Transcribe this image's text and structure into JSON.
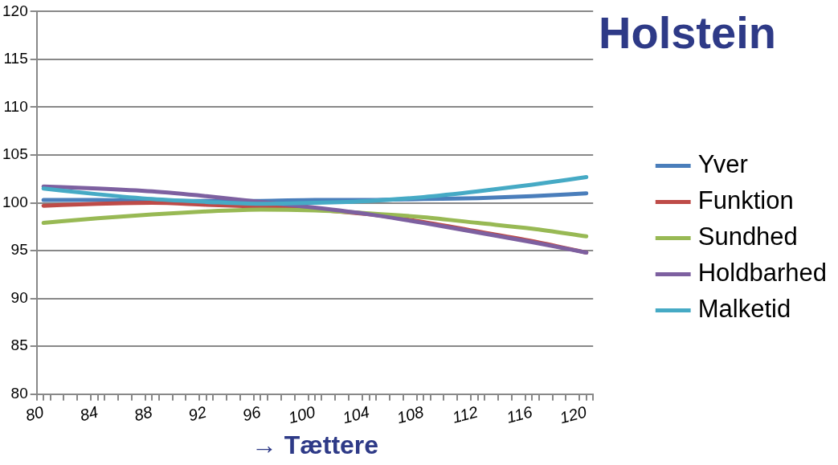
{
  "chart_data": {
    "type": "line",
    "title": "Holstein",
    "xlabel": "→ Tættere",
    "legend": "right",
    "grid": "y",
    "marker": "none",
    "line_style": "solid",
    "x": [
      80,
      84,
      88,
      92,
      96,
      100,
      104,
      108,
      112,
      116,
      120
    ],
    "xlim": [
      79.5,
      120.5
    ],
    "xticks": [
      {
        "value": 79.5,
        "label": null
      },
      {
        "value": 80,
        "label": "80"
      },
      {
        "value": 80.5,
        "label": null
      },
      {
        "value": 81.5,
        "label": null
      },
      {
        "value": 82.5,
        "label": null
      },
      {
        "value": 83.5,
        "label": null
      },
      {
        "value": 84,
        "label": "84"
      },
      {
        "value": 84.5,
        "label": null
      },
      {
        "value": 85.5,
        "label": null
      },
      {
        "value": 86.5,
        "label": null
      },
      {
        "value": 87.5,
        "label": null
      },
      {
        "value": 88,
        "label": "88"
      },
      {
        "value": 88.5,
        "label": null
      },
      {
        "value": 89.5,
        "label": null
      },
      {
        "value": 90.5,
        "label": null
      },
      {
        "value": 91.5,
        "label": null
      },
      {
        "value": 92,
        "label": "92"
      },
      {
        "value": 92.5,
        "label": null
      },
      {
        "value": 93.5,
        "label": null
      },
      {
        "value": 94.5,
        "label": null
      },
      {
        "value": 95.5,
        "label": null
      },
      {
        "value": 96,
        "label": "96"
      },
      {
        "value": 96.5,
        "label": null
      },
      {
        "value": 97.5,
        "label": null
      },
      {
        "value": 98.5,
        "label": null
      },
      {
        "value": 99.5,
        "label": null
      },
      {
        "value": 100,
        "label": "100"
      },
      {
        "value": 100.5,
        "label": null
      },
      {
        "value": 101.5,
        "label": null
      },
      {
        "value": 102.5,
        "label": null
      },
      {
        "value": 103.5,
        "label": null
      },
      {
        "value": 104,
        "label": "104"
      },
      {
        "value": 104.5,
        "label": null
      },
      {
        "value": 105.5,
        "label": null
      },
      {
        "value": 106.5,
        "label": null
      },
      {
        "value": 107.5,
        "label": null
      },
      {
        "value": 108,
        "label": "108"
      },
      {
        "value": 108.5,
        "label": null
      },
      {
        "value": 109.5,
        "label": null
      },
      {
        "value": 110.5,
        "label": null
      },
      {
        "value": 111.5,
        "label": null
      },
      {
        "value": 112,
        "label": "112"
      },
      {
        "value": 112.5,
        "label": null
      },
      {
        "value": 113.5,
        "label": null
      },
      {
        "value": 114.5,
        "label": null
      },
      {
        "value": 115.5,
        "label": null
      },
      {
        "value": 116,
        "label": "116"
      },
      {
        "value": 116.5,
        "label": null
      },
      {
        "value": 117.5,
        "label": null
      },
      {
        "value": 118.5,
        "label": null
      },
      {
        "value": 119.5,
        "label": null
      },
      {
        "value": 120,
        "label": "120"
      },
      {
        "value": 120.5,
        "label": null
      }
    ],
    "ylim": [
      80,
      120
    ],
    "yticks": [
      80,
      85,
      90,
      95,
      100,
      105,
      110,
      115,
      120
    ],
    "series": [
      {
        "name": "Yver",
        "color": "#4a7ebb",
        "values": [
          100.3,
          100.3,
          100.2,
          100.2,
          100.2,
          100.3,
          100.3,
          100.4,
          100.5,
          100.7,
          101.0
        ]
      },
      {
        "name": "Funktion",
        "color": "#be4b48",
        "values": [
          99.7,
          99.9,
          100.0,
          99.8,
          99.6,
          99.3,
          98.8,
          98.0,
          97.0,
          96.0,
          94.8
        ]
      },
      {
        "name": "Sundhed",
        "color": "#98b954",
        "values": [
          97.9,
          98.4,
          98.8,
          99.1,
          99.3,
          99.2,
          98.9,
          98.5,
          97.9,
          97.3,
          96.5
        ]
      },
      {
        "name": "Holdbarhed",
        "color": "#7d60a0",
        "values": [
          101.7,
          101.5,
          101.2,
          100.7,
          100.1,
          99.5,
          98.8,
          97.9,
          96.9,
          95.9,
          94.8
        ]
      },
      {
        "name": "Malketid",
        "color": "#46aac5",
        "values": [
          101.5,
          100.9,
          100.4,
          100.1,
          99.9,
          100.0,
          100.2,
          100.6,
          101.2,
          101.9,
          102.7
        ]
      }
    ]
  }
}
